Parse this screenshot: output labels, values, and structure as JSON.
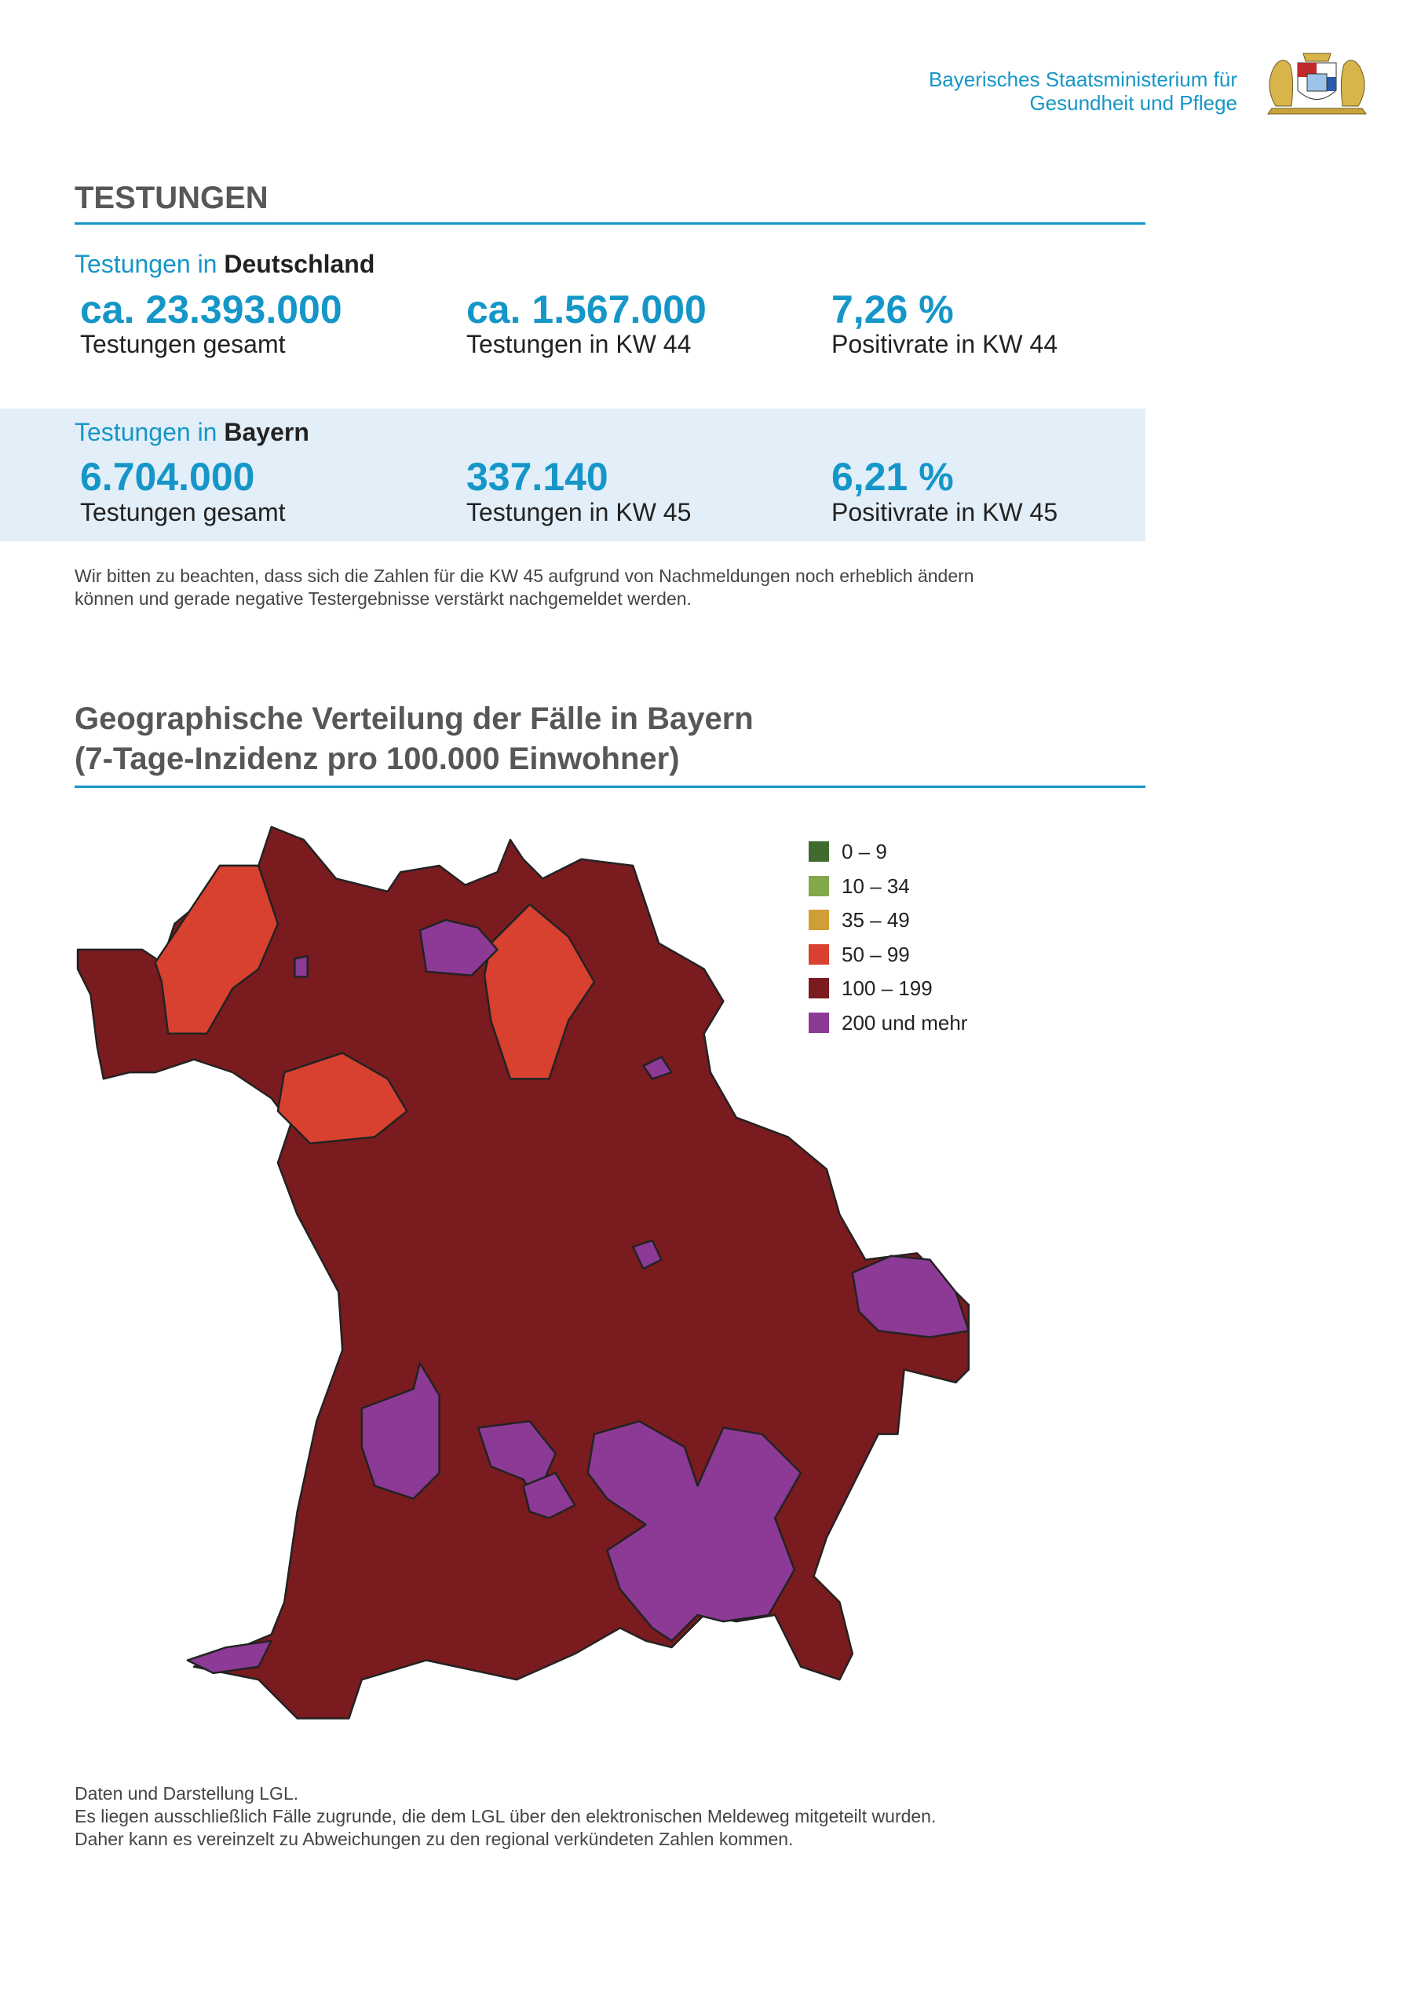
{
  "header": {
    "org_line1": "Bayerisches Staatsministerium für",
    "org_line2": "Gesundheit und Pflege"
  },
  "testing": {
    "title": "TESTUNGEN",
    "germany": {
      "heading_prefix": "Testungen in ",
      "heading_region": "Deutschland",
      "stats": [
        {
          "value": "ca. 23.393.000",
          "label": "Testungen gesamt"
        },
        {
          "value": "ca. 1.567.000",
          "label": "Testungen in KW 44"
        },
        {
          "value": "7,26 %",
          "label": "Positivrate in KW 44"
        }
      ]
    },
    "bavaria": {
      "heading_prefix": "Testungen in ",
      "heading_region": "Bayern",
      "stats": [
        {
          "value": "6.704.000",
          "label": "Testungen gesamt"
        },
        {
          "value": "337.140",
          "label": "Testungen in KW 45"
        },
        {
          "value": "6,21 %",
          "label": "Positivrate in KW 45"
        }
      ]
    },
    "note": [
      "Wir bitten zu beachten, dass sich die Zahlen für die KW 45 aufgrund von Nachmeldungen noch erheblich ändern",
      "können und gerade negative Testergebnisse verstärkt nachgemeldet werden."
    ]
  },
  "map": {
    "title": [
      "Geographische Verteilung der Fälle in Bayern",
      "(7-Tage-Inzidenz pro 100.000 Einwohner)"
    ],
    "legend": [
      {
        "label": "0 – 9",
        "color": "#3f6b2f"
      },
      {
        "label": "10 – 34",
        "color": "#82a84c"
      },
      {
        "label": "35 – 49",
        "color": "#cf9f35"
      },
      {
        "label": "50 – 99",
        "color": "#d8412f"
      },
      {
        "label": "100 – 199",
        "color": "#7a1b1f"
      },
      {
        "label": "200 und mehr",
        "color": "#8c3a95"
      }
    ],
    "footer": [
      "Daten und Darstellung LGL.",
      "Es liegen ausschließlich Fälle zugrunde, die dem LGL über den elektronischen Meldeweg mitgeteilt wurden.",
      "Daher kann es vereinzelt zu Abweichungen zu den regional verkündeten Zahlen kommen."
    ]
  }
}
